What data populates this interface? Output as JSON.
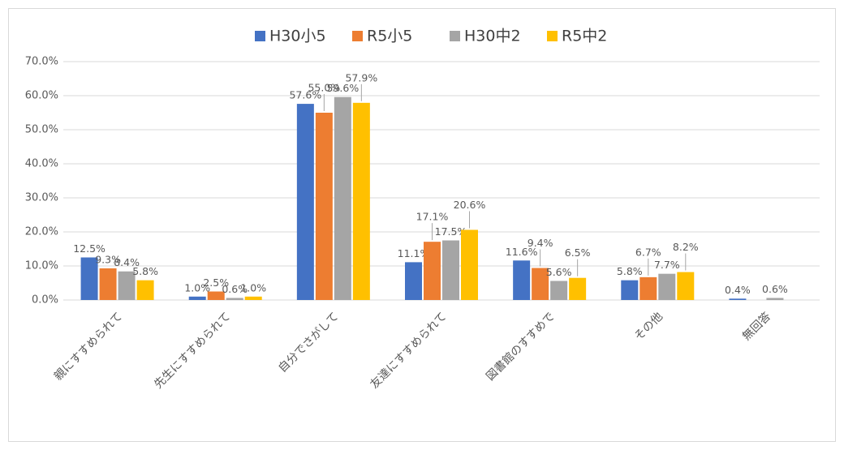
{
  "chart_data": {
    "type": "bar",
    "categories": [
      "親にすすめられて",
      "先生にすすめられて",
      "自分でさがして",
      "友達にすすめられて",
      "図書館のすすめで",
      "その他",
      "無回答"
    ],
    "series": [
      {
        "name": "H30小5",
        "color": "#4472c4",
        "values": [
          12.5,
          1.0,
          57.6,
          11.1,
          11.6,
          5.8,
          0.4
        ],
        "value_labels": [
          "12.5%",
          "1.0%",
          "57.6%",
          "11.1%",
          "11.6%",
          "5.8%",
          "0.4%"
        ]
      },
      {
        "name": "R5小5",
        "color": "#ed7d31",
        "values": [
          9.3,
          2.5,
          55.0,
          17.1,
          9.4,
          6.7,
          null
        ],
        "value_labels": [
          "9.3%",
          "2.5%",
          "55.0%",
          "17.1%",
          "9.4%",
          "6.7%",
          null
        ]
      },
      {
        "name": "H30中2",
        "color": "#a5a5a5",
        "values": [
          8.4,
          0.6,
          59.6,
          17.5,
          5.6,
          7.7,
          0.6
        ],
        "value_labels": [
          "8.4%",
          "0.6%",
          "59.6%",
          "17.5%",
          "5.6%",
          "7.7%",
          "0.6%"
        ]
      },
      {
        "name": "R5中2",
        "color": "#ffc000",
        "values": [
          5.8,
          1.0,
          57.9,
          20.6,
          6.5,
          8.2,
          null
        ],
        "value_labels": [
          "5.8%",
          "1.0%",
          "57.9%",
          "20.6%",
          "6.5%",
          "8.2%",
          null
        ]
      }
    ],
    "ylim": [
      0,
      70
    ],
    "yticks": [
      {
        "value": 0,
        "label": "0.0%"
      },
      {
        "value": 10,
        "label": "10.0%"
      },
      {
        "value": 20,
        "label": "20.0%"
      },
      {
        "value": 30,
        "label": "30.0%"
      },
      {
        "value": 40,
        "label": "40.0%"
      },
      {
        "value": 50,
        "label": "50.0%"
      },
      {
        "value": 60,
        "label": "60.0%"
      },
      {
        "value": 70,
        "label": "70.0%"
      }
    ],
    "grid": true,
    "legend": "top"
  }
}
